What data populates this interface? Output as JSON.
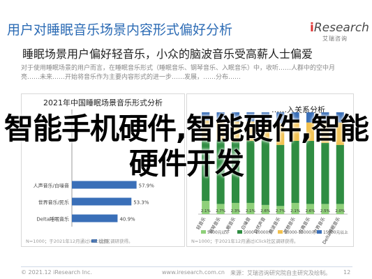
{
  "header": {
    "title": "用户对睡眠音乐场景内容形式偏好分析",
    "logo_text": "Research",
    "logo_prefix": "i",
    "logo_cn": "艾瑞咨询",
    "subtitle": "睡眠场景用户偏好轻音乐，小众的脑波音乐受高薪人士偏爱",
    "paragraph": "对于使用睡眠场景的用户而言，在睡眠音乐形式（睡眠音乐、钢琴音乐、入眠音乐）中，收听……人群中的空中月亮……未来……开始将音乐作为主要内容形式的进一步……发展，……分布……"
  },
  "watermark": "智能手机硬件,智能硬件,智能硬件开发",
  "left_chart": {
    "title": "2021年中国睡眠场景音乐形式分析",
    "legend": "比例",
    "source": "N=1000；于2021年12月通过iClick社区调研获得。",
    "chart_data": {
      "type": "bar",
      "orientation": "horizontal",
      "categories": [
        "",
        "",
        "",
        "",
        "人声音乐/白噪音",
        "世界音乐/民乐",
        "Delta睡眠音乐"
      ],
      "values": [
        null,
        null,
        null,
        null,
        57.9,
        53.3,
        40.9
      ],
      "value_labels": [
        "",
        "",
        "",
        "",
        "57.9%",
        "53.3%",
        "40.9%"
      ],
      "xlim": [
        0,
        100
      ],
      "color": "#3a6fb8"
    }
  },
  "right_chart": {
    "title": "……入关系分析",
    "source": "N=1000；于2021年12月通过iClick社区调研获得。",
    "chart_data": {
      "type": "bar",
      "stacked": true,
      "percent": true,
      "categories": [
        "轻音乐",
        "钢琴音乐",
        "入眠音乐",
        "白噪音",
        "自然声音",
        "脑波音乐",
        "冥想音乐",
        "古典音乐",
        "世界音乐",
        "Delta睡眠音乐"
      ],
      "legend": [
        "5000元以下",
        "5000-10000元",
        "10000-15000元",
        "15000元以上"
      ],
      "colors": [
        "#8fd07a",
        "#2f8d42",
        "#f2c14e",
        "#3a6fb8"
      ],
      "series": [
        {
          "name": "5000元以下",
          "values": [
            13,
            10,
            11,
            11,
            9,
            8,
            11,
            10,
            10,
            10
          ]
        },
        {
          "name": "5000-10000元",
          "values": [
            62,
            63,
            60,
            61,
            64,
            60,
            61,
            62,
            60,
            58
          ]
        },
        {
          "name": "10000-15000元",
          "values": [
            17,
            19,
            20,
            19,
            18,
            21,
            19,
            18,
            20,
            22
          ]
        },
        {
          "name": "15000元以上",
          "values": [
            8,
            8,
            9,
            9,
            9,
            11,
            9,
            10,
            10,
            10
          ]
        }
      ],
      "value_labels_bottom": [
        "2.1%",
        "2.7%",
        "2.3%",
        "2.1%",
        "2.6%",
        "2.7%",
        "2.1%",
        "2.6%",
        "2.5%",
        "2.0%"
      ]
    }
  },
  "footer": {
    "left": "© 2021.12 iResearch Inc.",
    "center": "www.iresearch.com.cn",
    "right": "来源：艾瑞咨询研究院自主研究及绘制。",
    "page": "12"
  }
}
